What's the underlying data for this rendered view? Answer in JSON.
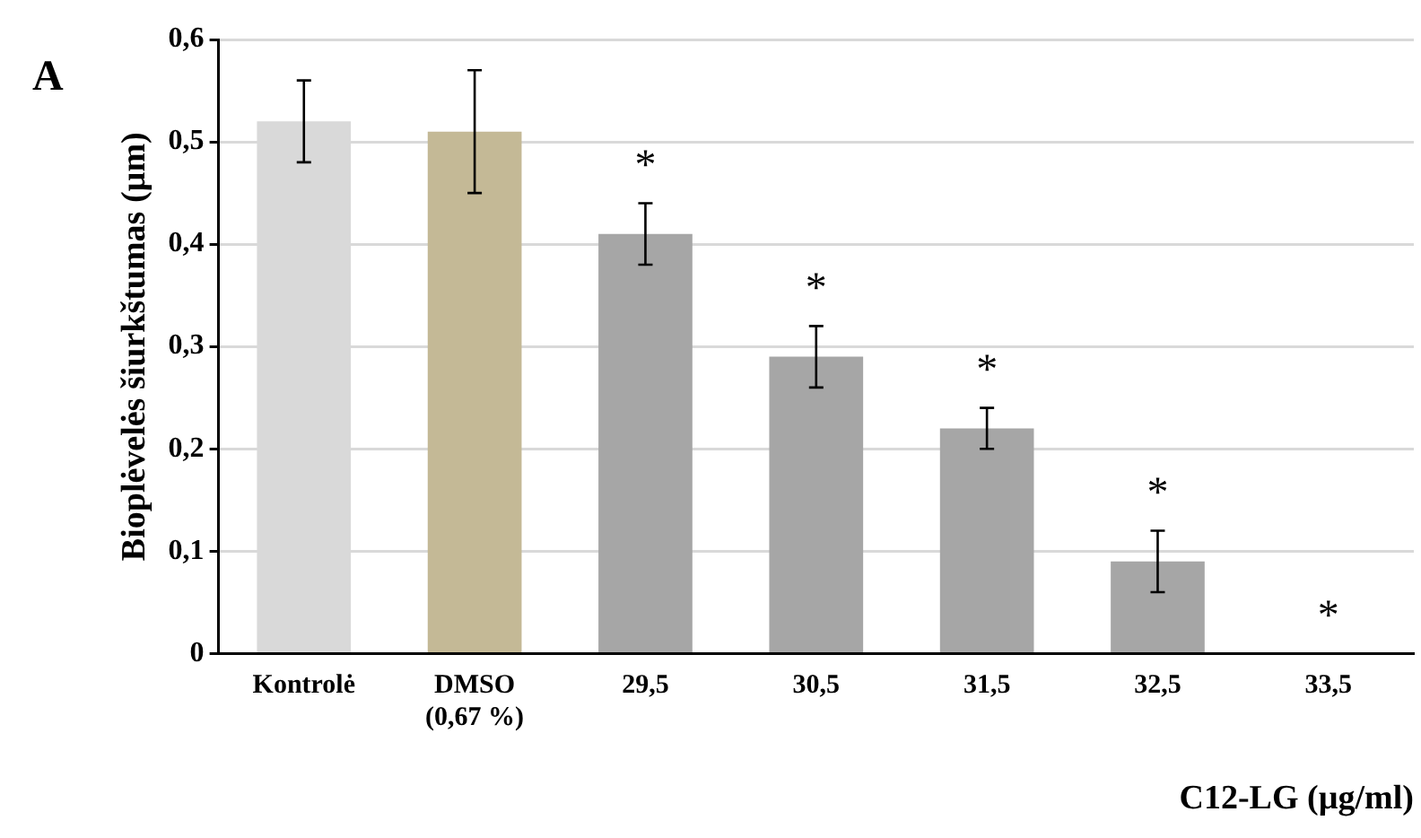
{
  "chart_data": {
    "type": "bar",
    "ylabel": "Bioplėvelės šiurkštumas (µm)",
    "xlabel": "C12-LG (µg/ml)",
    "categories": [
      "Kontrolė",
      "DMSO (0,67 %)",
      "29,5",
      "30,5",
      "31,5",
      "32,5",
      "33,5"
    ],
    "values": [
      0.52,
      0.51,
      0.41,
      0.29,
      0.22,
      0.09,
      0
    ],
    "colors": [
      "#d9d9d9",
      "#c4b996",
      "#a6a6a6",
      "#a6a6a6",
      "#a6a6a6",
      "#a6a6a6",
      "#a6a6a6"
    ],
    "errors": [
      0.04,
      0.06,
      0.03,
      0.03,
      0.02,
      0.03,
      null
    ],
    "ylim": [
      0,
      0.6
    ],
    "yticks": [
      0,
      {
        "value": 0.1,
        "label": "0,1"
      },
      {
        "value": 0.2,
        "label": "0,2"
      },
      {
        "value": 0.3,
        "label": "0,3"
      },
      {
        "value": 0.4,
        "label": "0,4"
      },
      {
        "value": 0.5,
        "label": "0,5"
      },
      {
        "value": 0.6,
        "label": "0,6"
      }
    ],
    "grid": "y",
    "legend": false,
    "annotations": [
      "A",
      {
        "text": "*",
        "x": "29,5",
        "y": 0.41
      },
      {
        "text": "*",
        "x": "30,5",
        "y": 0.29
      },
      {
        "text": "*",
        "x": "31,5",
        "y": 0.22
      },
      {
        "text": "*",
        "x": "32,5",
        "y": 0.09
      },
      {
        "text": "*",
        "x": "33,5",
        "y": 0
      }
    ]
  }
}
